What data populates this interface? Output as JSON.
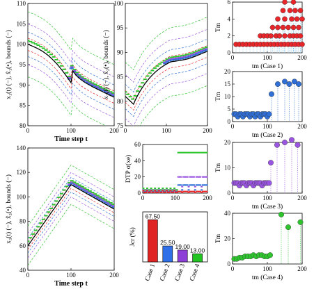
{
  "colors": {
    "red": "#e8262a",
    "blue": "#2f6fd6",
    "purple": "#9a55e0",
    "green": "#2ec42e",
    "bar_red": "#e02424",
    "bar_blue": "#2f6fe8",
    "bar_purple": "#8e3fd8",
    "bar_green": "#22c422"
  },
  "chart_data": [
    {
      "type": "line",
      "xlabel": "Time step t",
      "ylabel": "x₁(t) (−), x̂₁(•), bounds (−)",
      "xlim": [
        0,
        200
      ],
      "ylim": [
        80,
        110
      ],
      "xticks": [
        "0",
        "100",
        "200"
      ],
      "yticks": [
        "80",
        "85",
        "90",
        "95",
        "100",
        "105",
        "110"
      ],
      "curve": "tank1_decay"
    },
    {
      "type": "line",
      "xlabel": "",
      "ylabel": "x₂(t) (−), x̂₂(•), bounds (−)",
      "xlim": [
        0,
        200
      ],
      "ylim": [
        75,
        100
      ],
      "xticks": [
        "0",
        "100",
        "200"
      ],
      "yticks": [
        "75",
        "80",
        "85",
        "90",
        "95",
        "100"
      ],
      "curve": "tank2_rise"
    },
    {
      "type": "line",
      "xlabel": "Time step t",
      "ylabel": "x₃(t) (−), x̂₃(•), bounds (−)",
      "xlim": [
        0,
        200
      ],
      "ylim": [
        40,
        140
      ],
      "xticks": [
        "0",
        "100",
        "200"
      ],
      "yticks": [
        "40",
        "60",
        "80",
        "100",
        "120",
        "140"
      ],
      "curve": "tank3_peak"
    },
    {
      "type": "scatter",
      "xlabel": "",
      "ylabel": "DTP σ(xe)",
      "xlim": [
        0,
        200
      ],
      "ylim": [
        0,
        60
      ],
      "xticks": [
        "0",
        "100",
        "200"
      ],
      "yticks": [
        "0",
        "20",
        "40",
        "60"
      ],
      "series": [
        {
          "color_key": "green",
          "before": 4,
          "after": 50
        },
        {
          "color_key": "purple",
          "before": 2,
          "after": 20
        },
        {
          "color_key": "blue",
          "before": 1.5,
          "after": 10
        },
        {
          "color_key": "red",
          "before": 1,
          "after": 2
        }
      ]
    },
    {
      "type": "bar",
      "xlabel": "",
      "ylabel": "Jcr (%)",
      "ylim": [
        0,
        80
      ],
      "categories": [
        "Case 1",
        "Case 2",
        "Case 3",
        "Case 4"
      ],
      "values": [
        67.5,
        25.5,
        19.0,
        13.0
      ],
      "value_labels": [
        "67.50",
        "25.50",
        "19.00",
        "13.00"
      ],
      "color_keys": [
        "bar_red",
        "bar_blue",
        "bar_purple",
        "bar_green"
      ]
    },
    {
      "type": "scatter",
      "xlabel": "tm (Case 1)",
      "ylabel": "Tm",
      "xlim": [
        0,
        200
      ],
      "ylim": [
        0,
        6
      ],
      "xticks": [
        "0",
        "100",
        "200"
      ],
      "yticks": [
        "0",
        "2",
        "4",
        "6"
      ],
      "color_key": "red",
      "points": [
        [
          10,
          1
        ],
        [
          20,
          1
        ],
        [
          30,
          1
        ],
        [
          40,
          1
        ],
        [
          50,
          1
        ],
        [
          60,
          1
        ],
        [
          70,
          1
        ],
        [
          80,
          1
        ],
        [
          90,
          1
        ],
        [
          100,
          1
        ],
        [
          110,
          1
        ],
        [
          120,
          1
        ],
        [
          130,
          1
        ],
        [
          140,
          1
        ],
        [
          150,
          1
        ],
        [
          160,
          1
        ],
        [
          170,
          1
        ],
        [
          180,
          1
        ],
        [
          190,
          1
        ],
        [
          200,
          1
        ],
        [
          80,
          2
        ],
        [
          90,
          2
        ],
        [
          100,
          2
        ],
        [
          110,
          2
        ],
        [
          125,
          2
        ],
        [
          135,
          2
        ],
        [
          150,
          2
        ],
        [
          165,
          2
        ],
        [
          175,
          2
        ],
        [
          185,
          2
        ],
        [
          195,
          2
        ],
        [
          115,
          3
        ],
        [
          130,
          3
        ],
        [
          145,
          3
        ],
        [
          160,
          3
        ],
        [
          175,
          3
        ],
        [
          190,
          3
        ],
        [
          130,
          4
        ],
        [
          150,
          4
        ],
        [
          170,
          4
        ],
        [
          185,
          4
        ],
        [
          200,
          4
        ],
        [
          145,
          5
        ],
        [
          165,
          5
        ],
        [
          180,
          5
        ],
        [
          195,
          5
        ],
        [
          150,
          6
        ],
        [
          175,
          6
        ]
      ]
    },
    {
      "type": "scatter",
      "xlabel": "tm (Case 2)",
      "ylabel": "Tm",
      "xlim": [
        0,
        200
      ],
      "ylim": [
        0,
        20
      ],
      "xticks": [
        "0",
        "100",
        "200"
      ],
      "yticks": [
        "0",
        "5",
        "10",
        "15",
        "20"
      ],
      "color_key": "blue",
      "points": [
        [
          5,
          3
        ],
        [
          10,
          3
        ],
        [
          15,
          2
        ],
        [
          20,
          3
        ],
        [
          25,
          3
        ],
        [
          30,
          2
        ],
        [
          35,
          3
        ],
        [
          40,
          3
        ],
        [
          45,
          3
        ],
        [
          50,
          2
        ],
        [
          55,
          3
        ],
        [
          60,
          3
        ],
        [
          65,
          2
        ],
        [
          70,
          3
        ],
        [
          75,
          3
        ],
        [
          80,
          2
        ],
        [
          85,
          3
        ],
        [
          90,
          3
        ],
        [
          95,
          3
        ],
        [
          100,
          2
        ],
        [
          105,
          3
        ],
        [
          112,
          11
        ],
        [
          130,
          15
        ],
        [
          150,
          16
        ],
        [
          163,
          15
        ],
        [
          178,
          16
        ],
        [
          190,
          15
        ]
      ]
    },
    {
      "type": "scatter",
      "xlabel": "tm (Case 3)",
      "ylabel": "Tm",
      "xlim": [
        0,
        200
      ],
      "ylim": [
        0,
        20
      ],
      "xticks": [
        "0",
        "100",
        "200"
      ],
      "yticks": [
        "0",
        "10",
        "20"
      ],
      "color_key": "purple",
      "points": [
        [
          5,
          4
        ],
        [
          10,
          4
        ],
        [
          15,
          4
        ],
        [
          20,
          3
        ],
        [
          25,
          4
        ],
        [
          30,
          4
        ],
        [
          35,
          4
        ],
        [
          40,
          3
        ],
        [
          45,
          4
        ],
        [
          50,
          4
        ],
        [
          55,
          4
        ],
        [
          60,
          3
        ],
        [
          65,
          4
        ],
        [
          70,
          4
        ],
        [
          75,
          4
        ],
        [
          80,
          4
        ],
        [
          85,
          3
        ],
        [
          90,
          4
        ],
        [
          95,
          4
        ],
        [
          100,
          4
        ],
        [
          105,
          4
        ],
        [
          110,
          12
        ],
        [
          128,
          19
        ],
        [
          150,
          20
        ],
        [
          170,
          21
        ],
        [
          187,
          19
        ]
      ]
    },
    {
      "type": "scatter",
      "xlabel": "tm (Case 4)",
      "ylabel": "Tm",
      "xlim": [
        0,
        200
      ],
      "ylim": [
        0,
        40
      ],
      "xticks": [
        "0",
        "100",
        "200"
      ],
      "yticks": [
        "0",
        "20",
        "40"
      ],
      "color_key": "green",
      "points": [
        [
          5,
          4
        ],
        [
          12,
          4
        ],
        [
          20,
          5
        ],
        [
          28,
          5
        ],
        [
          36,
          6
        ],
        [
          44,
          6
        ],
        [
          52,
          6
        ],
        [
          60,
          7
        ],
        [
          68,
          6
        ],
        [
          76,
          7
        ],
        [
          84,
          7
        ],
        [
          92,
          6
        ],
        [
          100,
          6
        ],
        [
          108,
          7
        ],
        [
          140,
          39
        ],
        [
          160,
          29
        ],
        [
          195,
          33
        ]
      ]
    }
  ]
}
